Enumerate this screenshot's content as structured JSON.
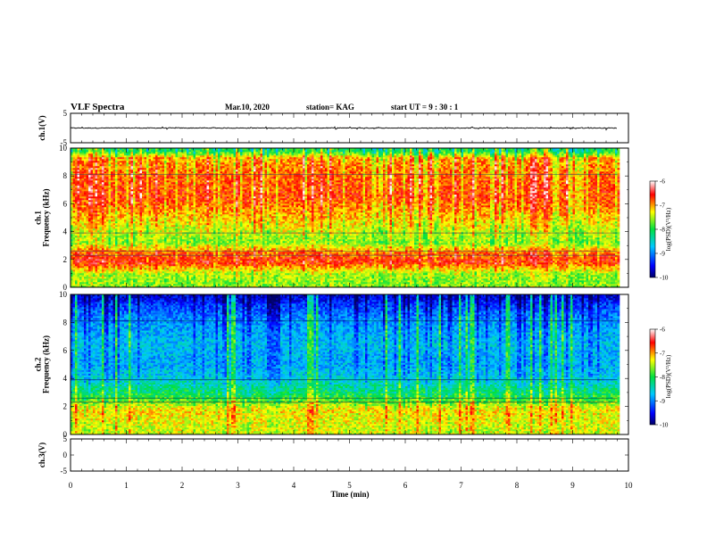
{
  "header": {
    "title": "VLF Spectra",
    "date": "Mar.10, 2020",
    "station": "station= KAG",
    "start": "start  UT =   9 : 30 : 1"
  },
  "chart_data": [
    {
      "id": "ch1-waveform",
      "type": "line",
      "ylabel": "ch.1(V)",
      "ylim": [
        -5,
        5
      ],
      "yticks": [
        "5",
        "-5"
      ],
      "xlim": [
        0,
        10
      ],
      "baseline": 0,
      "data_end_min": 9.8
    },
    {
      "id": "ch1-spectrogram",
      "type": "heatmap",
      "ylabel": "ch.1\nFrequency  (kHz)",
      "ylim": [
        0,
        10
      ],
      "yticks": [
        "0",
        "2",
        "4",
        "6",
        "8",
        "10"
      ],
      "xlim": [
        0,
        10
      ],
      "data_end_min": 9.8,
      "colorbar": {
        "label": "log(PSD)(V²/Hz)",
        "range": [
          -10,
          -6
        ],
        "ticks": [
          "-6",
          "-7",
          "-8",
          "-9",
          "-10"
        ]
      },
      "profile_log_psd": [
        {
          "f": 0.3,
          "v": -7.6
        },
        {
          "f": 1.0,
          "v": -7.5
        },
        {
          "f": 1.8,
          "v": -6.6
        },
        {
          "f": 2.5,
          "v": -6.8
        },
        {
          "f": 3.2,
          "v": -7.6
        },
        {
          "f": 4.0,
          "v": -7.4
        },
        {
          "f": 5.0,
          "v": -7.1
        },
        {
          "f": 6.5,
          "v": -6.7
        },
        {
          "f": 8.0,
          "v": -6.8
        },
        {
          "f": 9.3,
          "v": -7.0
        },
        {
          "f": 9.8,
          "v": -8.0
        }
      ]
    },
    {
      "id": "ch2-spectrogram",
      "type": "heatmap",
      "ylabel": "ch.2\nFrequency  (kHz)",
      "ylim": [
        0,
        10
      ],
      "yticks": [
        "0",
        "2",
        "4",
        "6",
        "8",
        "10"
      ],
      "xlim": [
        0,
        10
      ],
      "data_end_min": 9.8,
      "colorbar": {
        "label": "log(PSD)(V²/Hz)",
        "range": [
          -10,
          -6
        ],
        "ticks": [
          "-6",
          "-7",
          "-8",
          "-9",
          "-10"
        ]
      },
      "profile_log_psd": [
        {
          "f": 0.3,
          "v": -7.4
        },
        {
          "f": 1.0,
          "v": -7.3
        },
        {
          "f": 1.8,
          "v": -7.2
        },
        {
          "f": 2.5,
          "v": -7.8
        },
        {
          "f": 3.2,
          "v": -8.2
        },
        {
          "f": 4.0,
          "v": -8.6
        },
        {
          "f": 5.0,
          "v": -8.8
        },
        {
          "f": 6.5,
          "v": -8.7
        },
        {
          "f": 8.0,
          "v": -8.9
        },
        {
          "f": 9.3,
          "v": -9.3
        },
        {
          "f": 9.8,
          "v": -9.6
        }
      ]
    },
    {
      "id": "ch3-waveform",
      "type": "line",
      "ylabel": "ch.3(V)",
      "ylim": [
        -5,
        5
      ],
      "yticks": [
        "5",
        "0",
        "-5"
      ],
      "xlim": [
        0,
        10
      ],
      "xlabel": "Time  (min)",
      "xticks": [
        "0",
        "1",
        "2",
        "3",
        "4",
        "5",
        "6",
        "7",
        "8",
        "9",
        "10"
      ]
    }
  ],
  "colors": {
    "colormap": [
      "#000066",
      "#0000ff",
      "#00c8ff",
      "#00e040",
      "#ffff00",
      "#ff0000",
      "#ffffff"
    ]
  }
}
